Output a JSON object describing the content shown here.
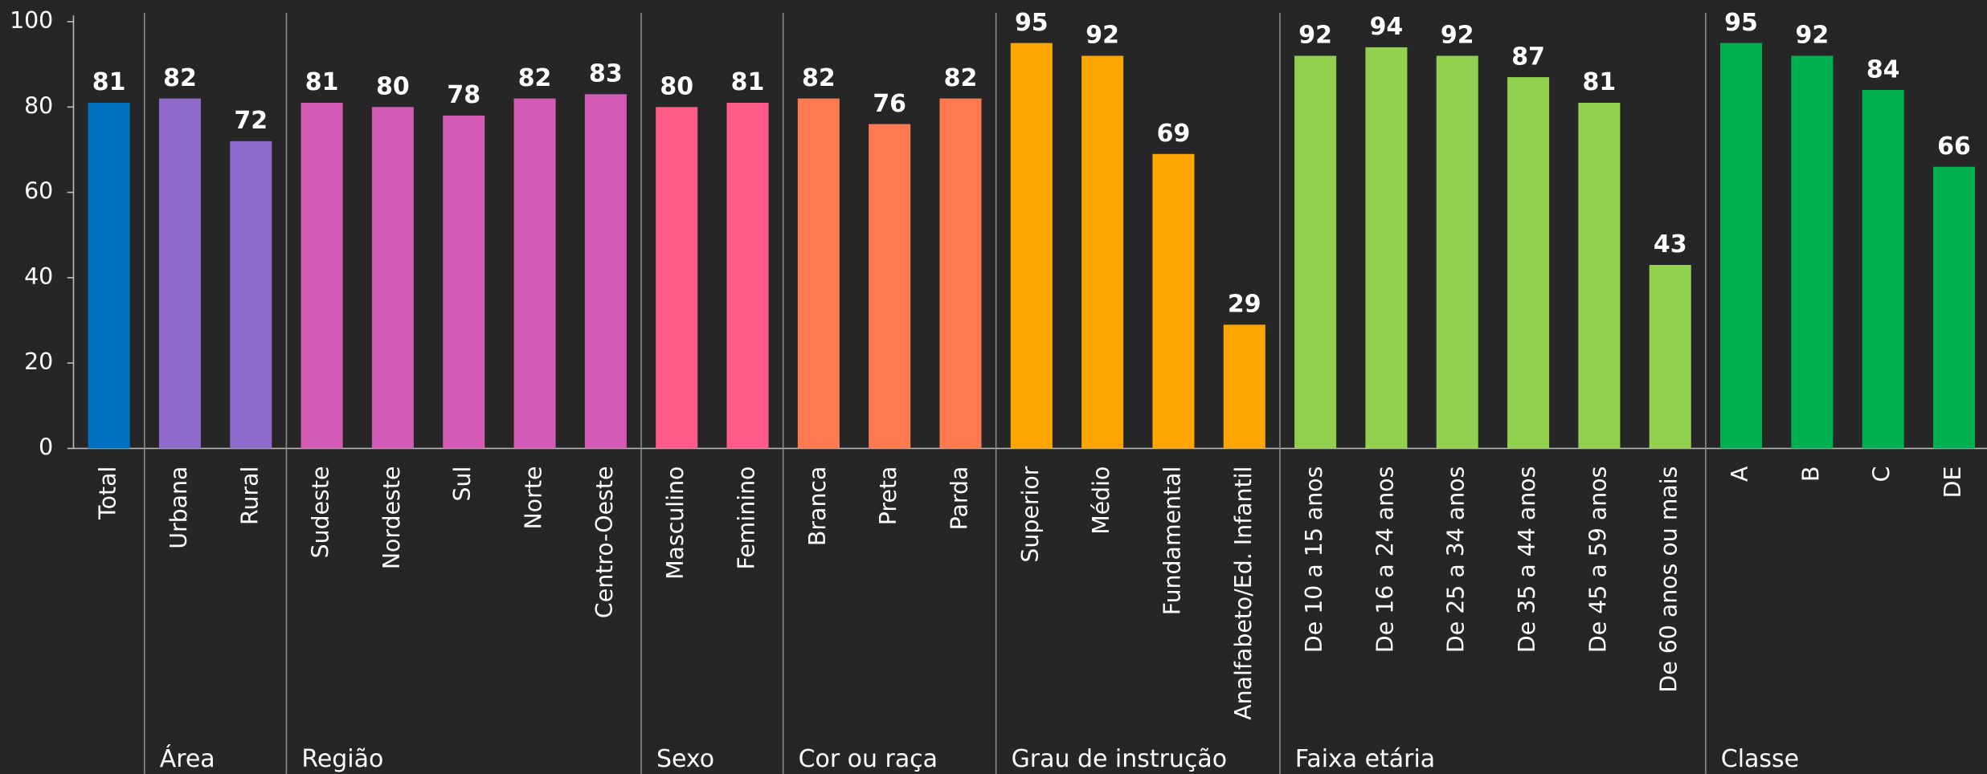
{
  "chart_data": {
    "type": "bar",
    "ylim": [
      0,
      100
    ],
    "yticks": [
      0,
      20,
      40,
      60,
      80,
      100
    ],
    "groups": [
      {
        "color": "#0070c0",
        "categories": [
          "Total"
        ],
        "values": [
          81
        ]
      },
      {
        "name": "Área",
        "color": "#8e6bcb",
        "categories": [
          "Urbana",
          "Rural"
        ],
        "values": [
          82,
          72
        ]
      },
      {
        "name": "Região",
        "color": "#d45bb5",
        "categories": [
          "Sudeste",
          "Nordeste",
          "Sul",
          "Norte",
          "Centro-Oeste"
        ],
        "values": [
          81,
          80,
          78,
          82,
          83
        ]
      },
      {
        "name": "Sexo",
        "color": "#ff5a8a",
        "categories": [
          "Masculino",
          "Feminino"
        ],
        "values": [
          80,
          81
        ]
      },
      {
        "name": "Cor ou raça",
        "color": "#ff7a50",
        "categories": [
          "Branca",
          "Preta",
          "Parda"
        ],
        "values": [
          82,
          76,
          82
        ]
      },
      {
        "name": "Grau de instrução",
        "color": "#ffa500",
        "categories": [
          "Superior",
          "Médio",
          "Fundamental",
          "Analfabeto/Ed. Infantil"
        ],
        "values": [
          95,
          92,
          69,
          29
        ]
      },
      {
        "name": "Faixa etária",
        "color": "#92d050",
        "categories": [
          "De 10 a 15 anos",
          "De 16 a 24 anos",
          "De 25 a 34 anos",
          "De 35 a 44 anos",
          "De 45 a 59 anos",
          "De 60 anos ou mais"
        ],
        "values": [
          92,
          94,
          92,
          87,
          81,
          43
        ]
      },
      {
        "name": "Classe",
        "color": "#00b050",
        "categories": [
          "A",
          "B",
          "C",
          "DE"
        ],
        "values": [
          95,
          92,
          84,
          66
        ]
      }
    ]
  }
}
